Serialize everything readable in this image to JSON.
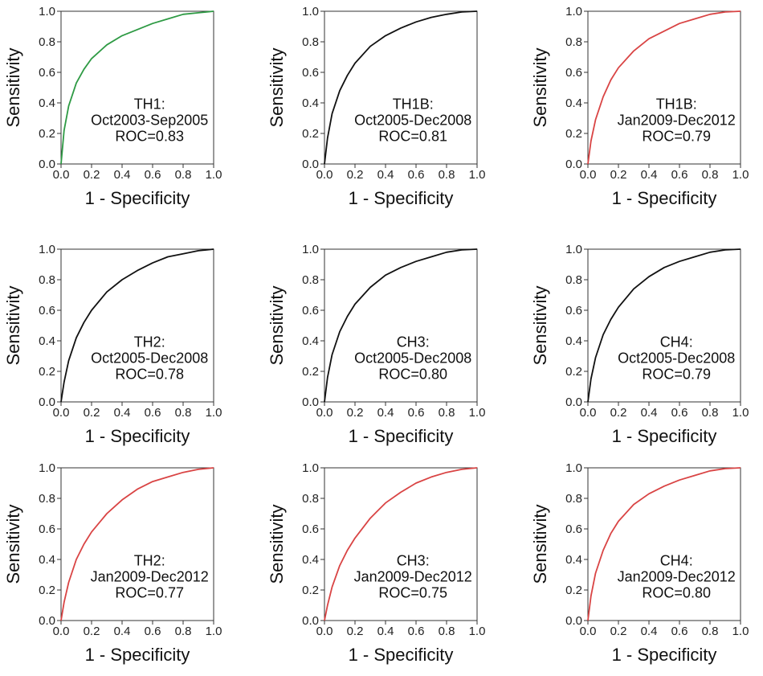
{
  "chart_data": [
    {
      "type": "line",
      "xlabel": "1 - Specificity",
      "ylabel": "Sensitivity",
      "xlim": [
        0,
        1
      ],
      "ylim": [
        0,
        1
      ],
      "xticks": [
        "0.0",
        "0.2",
        "0.4",
        "0.6",
        "0.8",
        "1.0"
      ],
      "yticks": [
        "0.0",
        "0.2",
        "0.4",
        "0.6",
        "0.8",
        "1.0"
      ],
      "annotation": [
        "TH1:",
        "Oct2003-Sep2005",
        "ROC=0.83"
      ],
      "series": [
        {
          "color": "#2e9a44",
          "x": [
            0,
            0.02,
            0.05,
            0.1,
            0.15,
            0.2,
            0.3,
            0.4,
            0.5,
            0.6,
            0.7,
            0.8,
            0.9,
            1.0
          ],
          "y": [
            0,
            0.22,
            0.38,
            0.53,
            0.62,
            0.69,
            0.78,
            0.84,
            0.88,
            0.92,
            0.95,
            0.98,
            0.99,
            1.0
          ]
        }
      ]
    },
    {
      "type": "line",
      "xlabel": "1 - Specificity",
      "ylabel": "Sensitivity",
      "xlim": [
        0,
        1
      ],
      "ylim": [
        0,
        1
      ],
      "xticks": [
        "0.0",
        "0.2",
        "0.4",
        "0.6",
        "0.8",
        "1.0"
      ],
      "yticks": [
        "0.0",
        "0.2",
        "0.4",
        "0.6",
        "0.8",
        "1.0"
      ],
      "annotation": [
        "TH1B:",
        "Oct2005-Dec2008",
        "ROC=0.81"
      ],
      "series": [
        {
          "color": "#111111",
          "x": [
            0,
            0.02,
            0.05,
            0.1,
            0.15,
            0.2,
            0.3,
            0.4,
            0.5,
            0.6,
            0.7,
            0.8,
            0.9,
            1.0
          ],
          "y": [
            0,
            0.17,
            0.33,
            0.48,
            0.58,
            0.66,
            0.77,
            0.84,
            0.89,
            0.93,
            0.96,
            0.98,
            0.995,
            1.0
          ]
        }
      ]
    },
    {
      "type": "line",
      "xlabel": "1 - Specificity",
      "ylabel": "Sensitivity",
      "xlim": [
        0,
        1
      ],
      "ylim": [
        0,
        1
      ],
      "xticks": [
        "0.0",
        "0.2",
        "0.4",
        "0.6",
        "0.8",
        "1.0"
      ],
      "yticks": [
        "0.0",
        "0.2",
        "0.4",
        "0.6",
        "0.8",
        "1.0"
      ],
      "annotation": [
        "TH1B:",
        "Jan2009-Dec2012",
        "ROC=0.79"
      ],
      "series": [
        {
          "color": "#d94444",
          "x": [
            0,
            0.02,
            0.05,
            0.1,
            0.15,
            0.2,
            0.3,
            0.4,
            0.5,
            0.6,
            0.7,
            0.8,
            0.9,
            1.0
          ],
          "y": [
            0,
            0.15,
            0.29,
            0.44,
            0.55,
            0.63,
            0.74,
            0.82,
            0.87,
            0.92,
            0.95,
            0.98,
            0.995,
            1.0
          ]
        }
      ]
    },
    {
      "type": "line",
      "xlabel": "1 - Specificity",
      "ylabel": "Sensitivity",
      "xlim": [
        0,
        1
      ],
      "ylim": [
        0,
        1
      ],
      "xticks": [
        "0.0",
        "0.2",
        "0.4",
        "0.6",
        "0.8",
        "1.0"
      ],
      "yticks": [
        "0.0",
        "0.2",
        "0.4",
        "0.6",
        "0.8",
        "1.0"
      ],
      "annotation": [
        "TH2:",
        "Oct2005-Dec2008",
        "ROC=0.78"
      ],
      "series": [
        {
          "color": "#111111",
          "x": [
            0,
            0.02,
            0.05,
            0.1,
            0.15,
            0.2,
            0.3,
            0.4,
            0.5,
            0.6,
            0.7,
            0.8,
            0.9,
            1.0
          ],
          "y": [
            0,
            0.13,
            0.27,
            0.42,
            0.52,
            0.6,
            0.72,
            0.8,
            0.86,
            0.91,
            0.95,
            0.97,
            0.99,
            1.0
          ]
        }
      ]
    },
    {
      "type": "line",
      "xlabel": "1 - Specificity",
      "ylabel": "Sensitivity",
      "xlim": [
        0,
        1
      ],
      "ylim": [
        0,
        1
      ],
      "xticks": [
        "0.0",
        "0.2",
        "0.4",
        "0.6",
        "0.8",
        "1.0"
      ],
      "yticks": [
        "0.0",
        "0.2",
        "0.4",
        "0.6",
        "0.8",
        "1.0"
      ],
      "annotation": [
        "CH3:",
        "Oct2005-Dec2008",
        "ROC=0.80"
      ],
      "series": [
        {
          "color": "#111111",
          "x": [
            0,
            0.02,
            0.05,
            0.1,
            0.15,
            0.2,
            0.3,
            0.4,
            0.5,
            0.6,
            0.7,
            0.8,
            0.9,
            1.0
          ],
          "y": [
            0,
            0.16,
            0.31,
            0.46,
            0.56,
            0.64,
            0.75,
            0.83,
            0.88,
            0.92,
            0.95,
            0.98,
            0.995,
            1.0
          ]
        }
      ]
    },
    {
      "type": "line",
      "xlabel": "1 - Specificity",
      "ylabel": "Sensitivity",
      "xlim": [
        0,
        1
      ],
      "ylim": [
        0,
        1
      ],
      "xticks": [
        "0.0",
        "0.2",
        "0.4",
        "0.6",
        "0.8",
        "1.0"
      ],
      "yticks": [
        "0.0",
        "0.2",
        "0.4",
        "0.6",
        "0.8",
        "1.0"
      ],
      "annotation": [
        "CH4:",
        "Oct2005-Dec2008",
        "ROC=0.79"
      ],
      "series": [
        {
          "color": "#111111",
          "x": [
            0,
            0.02,
            0.05,
            0.1,
            0.15,
            0.2,
            0.3,
            0.4,
            0.5,
            0.6,
            0.7,
            0.8,
            0.9,
            1.0
          ],
          "y": [
            0,
            0.15,
            0.29,
            0.44,
            0.54,
            0.62,
            0.74,
            0.82,
            0.88,
            0.92,
            0.95,
            0.98,
            0.995,
            1.0
          ]
        }
      ]
    },
    {
      "type": "line",
      "xlabel": "1 - Specificity",
      "ylabel": "Sensitivity",
      "xlim": [
        0,
        1
      ],
      "ylim": [
        0,
        1
      ],
      "xticks": [
        "0.0",
        "0.2",
        "0.4",
        "0.6",
        "0.8",
        "1.0"
      ],
      "yticks": [
        "0.0",
        "0.2",
        "0.4",
        "0.6",
        "0.8",
        "1.0"
      ],
      "annotation": [
        "TH2:",
        "Jan2009-Dec2012",
        "ROC=0.77"
      ],
      "series": [
        {
          "color": "#d94444",
          "x": [
            0,
            0.02,
            0.05,
            0.1,
            0.15,
            0.2,
            0.3,
            0.4,
            0.5,
            0.6,
            0.7,
            0.8,
            0.9,
            1.0
          ],
          "y": [
            0,
            0.12,
            0.25,
            0.4,
            0.5,
            0.58,
            0.7,
            0.79,
            0.86,
            0.91,
            0.94,
            0.97,
            0.99,
            1.0
          ]
        }
      ]
    },
    {
      "type": "line",
      "xlabel": "1 - Specificity",
      "ylabel": "Sensitivity",
      "xlim": [
        0,
        1
      ],
      "ylim": [
        0,
        1
      ],
      "xticks": [
        "0.0",
        "0.2",
        "0.4",
        "0.6",
        "0.8",
        "1.0"
      ],
      "yticks": [
        "0.0",
        "0.2",
        "0.4",
        "0.6",
        "0.8",
        "1.0"
      ],
      "annotation": [
        "CH3:",
        "Jan2009-Dec2012",
        "ROC=0.75"
      ],
      "series": [
        {
          "color": "#d94444",
          "x": [
            0,
            0.02,
            0.05,
            0.1,
            0.15,
            0.2,
            0.3,
            0.4,
            0.5,
            0.6,
            0.7,
            0.8,
            0.9,
            1.0
          ],
          "y": [
            0,
            0.1,
            0.22,
            0.36,
            0.46,
            0.54,
            0.67,
            0.77,
            0.84,
            0.9,
            0.94,
            0.97,
            0.99,
            1.0
          ]
        }
      ]
    },
    {
      "type": "line",
      "xlabel": "1 - Specificity",
      "ylabel": "Sensitivity",
      "xlim": [
        0,
        1
      ],
      "ylim": [
        0,
        1
      ],
      "xticks": [
        "0.0",
        "0.2",
        "0.4",
        "0.6",
        "0.8",
        "1.0"
      ],
      "yticks": [
        "0.0",
        "0.2",
        "0.4",
        "0.6",
        "0.8",
        "1.0"
      ],
      "annotation": [
        "CH4:",
        "Jan2009-Dec2012",
        "ROC=0.80"
      ],
      "series": [
        {
          "color": "#d94444",
          "x": [
            0,
            0.02,
            0.05,
            0.1,
            0.15,
            0.2,
            0.3,
            0.4,
            0.5,
            0.6,
            0.7,
            0.8,
            0.9,
            1.0
          ],
          "y": [
            0,
            0.16,
            0.31,
            0.46,
            0.57,
            0.65,
            0.76,
            0.83,
            0.88,
            0.92,
            0.95,
            0.98,
            0.995,
            1.0
          ]
        }
      ]
    }
  ]
}
